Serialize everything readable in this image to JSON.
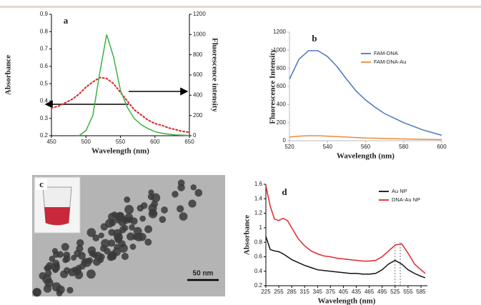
{
  "chart_data": [
    {
      "type": "line",
      "panel_label": "a",
      "xlabel": "Wavelength (nm)",
      "ylabel": "Absorbance",
      "y2label": "Fluorescence intensity",
      "x": [
        450,
        460,
        470,
        480,
        490,
        500,
        510,
        520,
        530,
        540,
        550,
        560,
        570,
        580,
        590,
        600,
        610,
        620,
        630,
        640,
        650
      ],
      "series": [
        {
          "name": "Absorbance",
          "color": "#e02020",
          "line_style": "dotted",
          "values": [
            0.36,
            0.37,
            0.39,
            0.41,
            0.44,
            0.48,
            0.51,
            0.535,
            0.53,
            0.5,
            0.45,
            0.4,
            0.35,
            0.32,
            0.29,
            0.27,
            0.26,
            0.245,
            0.235,
            0.225,
            0.22
          ]
        },
        {
          "name": "Fluorescence intensity",
          "color": "#3cb043",
          "line_style": "solid",
          "axis": "y2",
          "values": [
            null,
            null,
            null,
            null,
            0,
            50,
            200,
            620,
            1000,
            780,
            450,
            280,
            170,
            110,
            70,
            40,
            25,
            15,
            8,
            5,
            3
          ]
        }
      ],
      "xlim": [
        450,
        650
      ],
      "xticks": [
        450,
        500,
        550,
        600,
        650
      ],
      "ylim": [
        0.2,
        0.9
      ],
      "yticks": [
        0.2,
        0.3,
        0.4,
        0.5,
        0.6,
        0.7,
        0.8,
        0.9
      ],
      "y2lim": [
        0,
        1200
      ],
      "y2ticks": [
        0,
        200,
        400,
        600,
        800,
        1000,
        1200
      ],
      "legend": false
    },
    {
      "type": "line",
      "panel_label": "b",
      "xlabel": "Wavelength (nm)",
      "ylabel": "Fluorescence Intensity",
      "x": [
        520,
        525,
        530,
        535,
        540,
        545,
        550,
        555,
        560,
        565,
        570,
        575,
        580,
        585,
        590,
        595,
        600
      ],
      "series": [
        {
          "name": "FAM-DNA",
          "color": "#4a78c2",
          "line_style": "solid",
          "values": [
            680,
            900,
            995,
            995,
            930,
            820,
            680,
            550,
            450,
            370,
            300,
            250,
            200,
            160,
            120,
            90,
            60
          ]
        },
        {
          "name": "FAM-DNA-Au",
          "color": "#ed8a3a",
          "line_style": "solid",
          "values": [
            40,
            50,
            55,
            55,
            50,
            45,
            40,
            35,
            30,
            28,
            25,
            22,
            20,
            18,
            16,
            14,
            12
          ]
        }
      ],
      "xlim": [
        520,
        600
      ],
      "xticks": [
        520,
        540,
        560,
        580,
        600
      ],
      "ylim": [
        0,
        1200
      ],
      "yticks": [
        0,
        200,
        400,
        600,
        800,
        1000,
        1200
      ],
      "legend": "upper right"
    },
    {
      "type": "line",
      "panel_label": "d",
      "xlabel": "Wavelength (nm)",
      "ylabel": "Absorbance",
      "x": [
        225,
        235,
        245,
        255,
        265,
        275,
        285,
        300,
        315,
        330,
        345,
        360,
        375,
        390,
        405,
        420,
        435,
        450,
        465,
        480,
        495,
        510,
        525,
        540,
        555,
        570,
        585,
        595
      ],
      "series": [
        {
          "name": "Au NP",
          "color": "#111111",
          "line_style": "solid",
          "values": [
            0.88,
            0.7,
            0.68,
            0.67,
            0.64,
            0.6,
            0.56,
            0.52,
            0.48,
            0.45,
            0.42,
            0.41,
            0.4,
            0.39,
            0.38,
            0.37,
            0.37,
            0.36,
            0.36,
            0.37,
            0.42,
            0.5,
            0.55,
            0.5,
            0.42,
            0.37,
            0.33,
            0.31
          ]
        },
        {
          "name": "DNA-Au NP",
          "color": "#e0262a",
          "line_style": "solid",
          "values": [
            1.58,
            1.3,
            1.12,
            1.1,
            1.13,
            1.1,
            1.0,
            0.85,
            0.75,
            0.68,
            0.64,
            0.61,
            0.6,
            0.58,
            0.57,
            0.56,
            0.55,
            0.54,
            0.54,
            0.55,
            0.6,
            0.68,
            0.76,
            0.78,
            0.65,
            0.5,
            0.42,
            0.37
          ]
        }
      ],
      "vlines": [
        525,
        537
      ],
      "xlim": [
        225,
        600
      ],
      "xticks": [
        225,
        255,
        285,
        315,
        345,
        375,
        405,
        435,
        465,
        495,
        525,
        555,
        585
      ],
      "ylim": [
        0.2,
        1.6
      ],
      "yticks": [
        0.2,
        0.4,
        0.6,
        0.8,
        1,
        1.2,
        1.4,
        1.6
      ],
      "legend": "upper right"
    }
  ],
  "image_panel": {
    "label": "c",
    "scale_bar": "50 nm"
  }
}
